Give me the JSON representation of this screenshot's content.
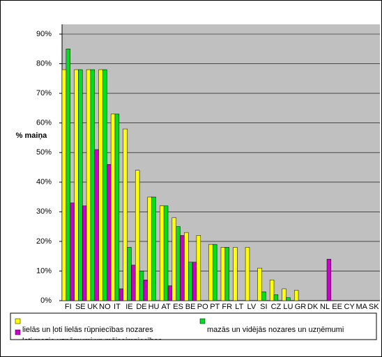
{
  "chart_data": {
    "type": "bar",
    "y_label": "% maiņa",
    "categories": [
      "FI",
      "SE",
      "UK",
      "NO",
      "IT",
      "IE",
      "DE",
      "HU",
      "AT",
      "ES",
      "BE",
      "PO",
      "PT",
      "FR",
      "LT",
      "LV",
      "SI",
      "CZ",
      "LU",
      "GR",
      "DK",
      "NL",
      "EE",
      "CY",
      "MA",
      "SK"
    ],
    "series": [
      {
        "name": "lielās un ļoti lielās rūpniecības nozares",
        "color": "#ffff00",
        "values": [
          78,
          78,
          78,
          78,
          63,
          58,
          44,
          35,
          32,
          28,
          23,
          22,
          19,
          18,
          18,
          18,
          11,
          7,
          4,
          3.5,
          0,
          0,
          0,
          0,
          0,
          0
        ]
      },
      {
        "name": "mazās un vidējās nozares  un uzņēmumi",
        "color": "#00dd22",
        "values": [
          85,
          78,
          78,
          78,
          63,
          18,
          10,
          35,
          32,
          25,
          13,
          0,
          19,
          18,
          0,
          0,
          3,
          2,
          1,
          0,
          0,
          0,
          0,
          0,
          0,
          0
        ]
      },
      {
        "name": "ļoti mazie uzņēmumi un mājsaimniecības",
        "color": "#cc00cc",
        "values": [
          33,
          32,
          51,
          46,
          4,
          12,
          7,
          0,
          5,
          22,
          13,
          0,
          0,
          0,
          0,
          0,
          0,
          0,
          0,
          0,
          0,
          14,
          0,
          0,
          0,
          0
        ]
      }
    ],
    "ylim": [
      0,
      90
    ],
    "yticks": [
      {
        "value": 0,
        "label": "0%"
      },
      {
        "value": 10,
        "label": "10%"
      },
      {
        "value": 20,
        "label": "20%"
      },
      {
        "value": 30,
        "label": "30%"
      },
      {
        "value": 40,
        "label": "40%"
      },
      {
        "value": 50,
        "label": "50%"
      },
      {
        "value": 60,
        "label": "60%"
      },
      {
        "value": 70,
        "label": "70%"
      },
      {
        "value": 80,
        "label": "80%"
      },
      {
        "value": 90,
        "label": "90%"
      }
    ],
    "grid": true
  }
}
